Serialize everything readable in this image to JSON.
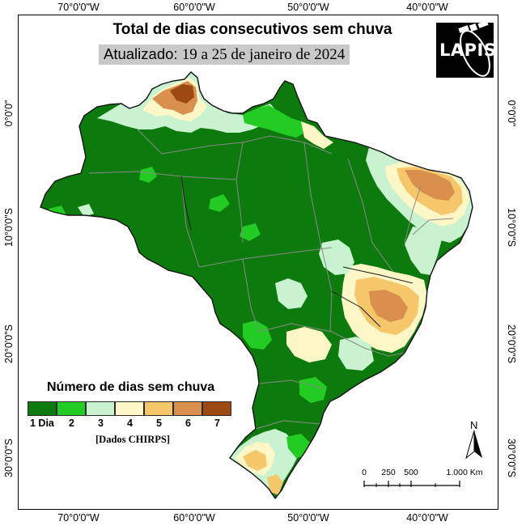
{
  "title": "Total de dias consecutivos sem chuva",
  "subtitle": {
    "label": "Atualizado:",
    "value": "19 a 25 de janeiro de 2024"
  },
  "logo": {
    "text": "LAPIS",
    "icon": "satellite-icon"
  },
  "axes": {
    "longitude_labels": [
      "70°0'0\"W",
      "60°0'0\"W",
      "50°0'0\"W",
      "40°0'0\"W"
    ],
    "latitude_labels": [
      "0°0'0\"",
      "10°0'0\"S",
      "20°0'0\"S",
      "30°0'0\"S"
    ]
  },
  "legend": {
    "title": "Número de dias sem chuva",
    "classes": [
      {
        "label": "1 Dia",
        "color": "#0d7a0d"
      },
      {
        "label": "2",
        "color": "#22cc22"
      },
      {
        "label": "3",
        "color": "#c8f2d0"
      },
      {
        "label": "4",
        "color": "#fdf6c6"
      },
      {
        "label": "5",
        "color": "#f5c76a"
      },
      {
        "label": "6",
        "color": "#d98f4e"
      },
      {
        "label": "7",
        "color": "#9c4a12"
      }
    ],
    "source": "[Dados CHIRPS]"
  },
  "north_arrow": {
    "label": "N",
    "icon": "north-arrow-icon"
  },
  "scale_bar": {
    "labels": [
      "0",
      "250",
      "500",
      "1.000 Km"
    ]
  }
}
